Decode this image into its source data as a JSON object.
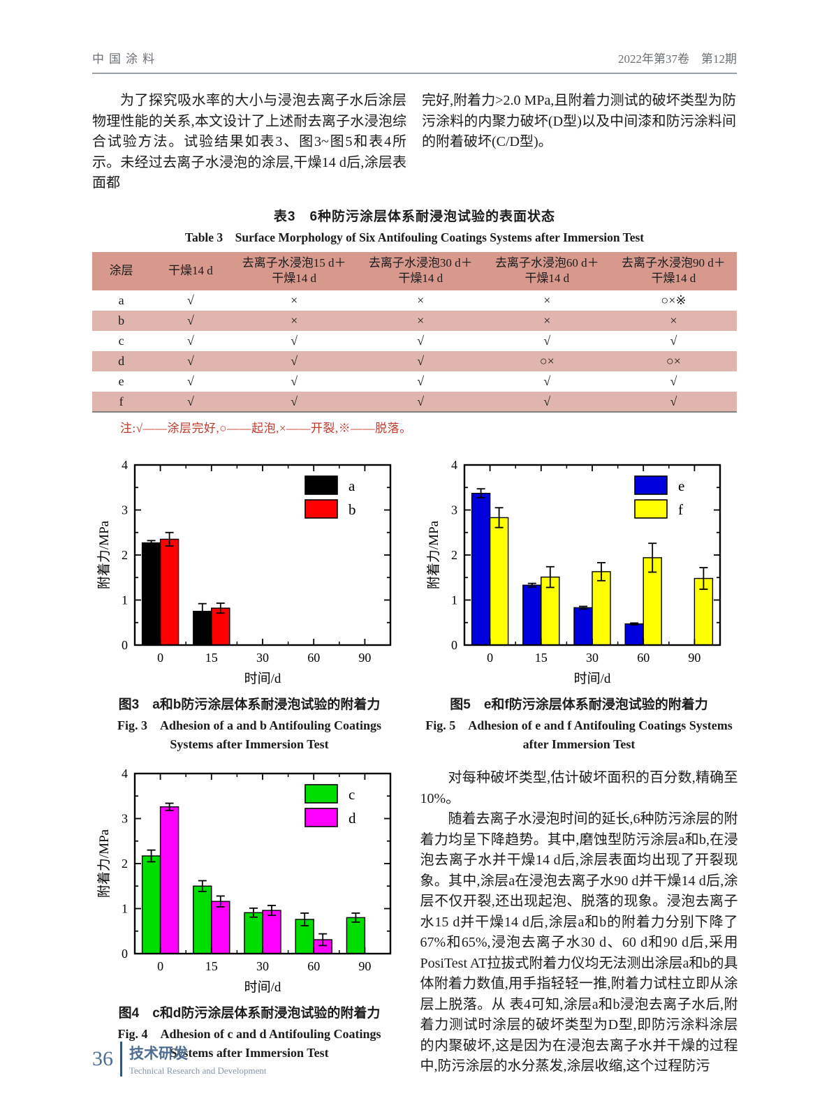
{
  "header": {
    "journal": "中国涂料",
    "issue": "2022年第37卷　第12期"
  },
  "intro": {
    "left": "为了探究吸水率的大小与浸泡去离子水后涂层物理性能的关系,本文设计了上述耐去离子水浸泡综合试验方法。试验结果如表3、图3~图5和表4所示。未经过去离子水浸泡的涂层,干燥14 d后,涂层表面都",
    "right": "完好,附着力>2.0 MPa,且附着力测试的破坏类型为防污涂料的内聚力破坏(D型)以及中间漆和防污涂料间的附着破坏(C/D型)。"
  },
  "table3": {
    "title_zh": "表3　6种防污涂层体系耐浸泡试验的表面状态",
    "title_en": "Table 3　Surface Morphology of Six Antifouling Coatings Systems after Immersion Test",
    "headers": [
      [
        "涂层"
      ],
      [
        "干燥14 d"
      ],
      [
        "去离子水浸泡15 d＋",
        "干燥14 d"
      ],
      [
        "去离子水浸泡30 d＋",
        "干燥14 d"
      ],
      [
        "去离子水浸泡60 d＋",
        "干燥14 d"
      ],
      [
        "去离子水浸泡90 d＋",
        "干燥14 d"
      ]
    ],
    "rows": [
      {
        "label": "a",
        "cells": [
          "√",
          "×",
          "×",
          "×",
          "○×※"
        ]
      },
      {
        "label": "b",
        "cells": [
          "√",
          "×",
          "×",
          "×",
          "×"
        ]
      },
      {
        "label": "c",
        "cells": [
          "√",
          "√",
          "√",
          "√",
          "√"
        ]
      },
      {
        "label": "d",
        "cells": [
          "√",
          "√",
          "√",
          "○×",
          "○×"
        ]
      },
      {
        "label": "e",
        "cells": [
          "√",
          "√",
          "√",
          "√",
          "√"
        ]
      },
      {
        "label": "f",
        "cells": [
          "√",
          "√",
          "√",
          "√",
          "√"
        ]
      }
    ],
    "note": "注:√——涂层完好,○——起泡,×——开裂,※——脱落。"
  },
  "chart_data": [
    {
      "id": "fig3",
      "type": "bar",
      "caption_zh": "图3　a和b防污涂层体系耐浸泡试验的附着力",
      "caption_en": "Fig. 3　Adhesion of a and b Antifouling Coatings Systems after Immersion Test",
      "categories": [
        "0",
        "15",
        "30",
        "60",
        "90"
      ],
      "xlabel": "时间/d",
      "ylabel": "附着力/MPa",
      "ylim": [
        0,
        4
      ],
      "yticks": [
        0,
        1,
        2,
        3,
        4
      ],
      "legend_position": "top-right",
      "grid": false,
      "series": [
        {
          "name": "a",
          "color": "#000000",
          "values": [
            2.27,
            0.75,
            null,
            null,
            null
          ],
          "errors": [
            0.05,
            0.17,
            null,
            null,
            null
          ]
        },
        {
          "name": "b",
          "color": "#ff0000",
          "values": [
            2.35,
            0.82,
            null,
            null,
            null
          ],
          "errors": [
            0.15,
            0.11,
            null,
            null,
            null
          ]
        }
      ]
    },
    {
      "id": "fig5",
      "type": "bar",
      "caption_zh": "图5　e和f防污涂层体系耐浸泡试验的附着力",
      "caption_en": "Fig. 5　Adhesion of e and f Antifouling Coatings Systems after Immersion Test",
      "categories": [
        "0",
        "15",
        "30",
        "60",
        "90"
      ],
      "xlabel": "时间/d",
      "ylabel": "附着力/MPa",
      "ylim": [
        0,
        4
      ],
      "yticks": [
        0,
        1,
        2,
        3,
        4
      ],
      "legend_position": "top-right",
      "grid": false,
      "series": [
        {
          "name": "e",
          "color": "#0000dd",
          "values": [
            3.37,
            1.33,
            0.83,
            0.47,
            null
          ],
          "errors": [
            0.1,
            0.04,
            0.03,
            0.02,
            null
          ]
        },
        {
          "name": "f",
          "color": "#ffff00",
          "values": [
            2.83,
            1.51,
            1.63,
            1.94,
            1.48
          ],
          "errors": [
            0.22,
            0.23,
            0.2,
            0.32,
            0.24
          ]
        }
      ]
    },
    {
      "id": "fig4",
      "type": "bar",
      "caption_zh": "图4　c和d防污涂层体系耐浸泡试验的附着力",
      "caption_en": "Fig. 4　Adhesion of c and d Antifouling Coatings Systems after Immersion Test",
      "categories": [
        "0",
        "15",
        "30",
        "60",
        "90"
      ],
      "xlabel": "时间/d",
      "ylabel": "附着力/MPa",
      "ylim": [
        0,
        4
      ],
      "yticks": [
        0,
        1,
        2,
        3,
        4
      ],
      "legend_position": "top-right",
      "grid": false,
      "series": [
        {
          "name": "c",
          "color": "#00dd00",
          "values": [
            2.17,
            1.5,
            0.91,
            0.76,
            0.8
          ],
          "errors": [
            0.13,
            0.12,
            0.1,
            0.14,
            0.1
          ]
        },
        {
          "name": "d",
          "color": "#ff00ff",
          "values": [
            3.26,
            1.16,
            0.96,
            0.31,
            null
          ],
          "errors": [
            0.08,
            0.12,
            0.11,
            0.13,
            null
          ]
        }
      ]
    }
  ],
  "body": {
    "p1": "对每种破坏类型,估计破坏面积的百分数,精确至10%。",
    "p2": "随着去离子水浸泡时间的延长,6种防污涂层的附着力均呈下降趋势。其中,磨蚀型防污涂层a和b,在浸泡去离子水并干燥14 d后,涂层表面均出现了开裂现象。其中,涂层a在浸泡去离子水90 d并干燥14 d后,涂层不仅开裂,还出现起泡、脱落的现象。浸泡去离子水15 d并干燥14 d后,涂层a和b的附着力分别下降了67%和65%,浸泡去离子水30 d、60 d和90 d后,采用PosiTest AT拉拔式附着力仪均无法测出涂层a和b的具体附着力数值,用手指轻轻一推,附着力试柱立即从涂层上脱落。从 表4可知,涂层a和b浸泡去离子水后,附着力测试时涂层的破坏类型为D型,即防污涂料涂层的内聚破坏,这是因为在浸泡去离子水并干燥的过程中,防污涂层的水分蒸发,涂层收缩,这个过程防污"
  },
  "footer": {
    "page_number": "36",
    "section_zh": "技术研发",
    "section_en": "Technical Research and Development"
  },
  "theme": {
    "table_header_bg": "#d6998c",
    "table_alt_row_bg": "#dfb5ad",
    "note_color": "#c03a2b",
    "footer_blue": "#4e6d92"
  }
}
